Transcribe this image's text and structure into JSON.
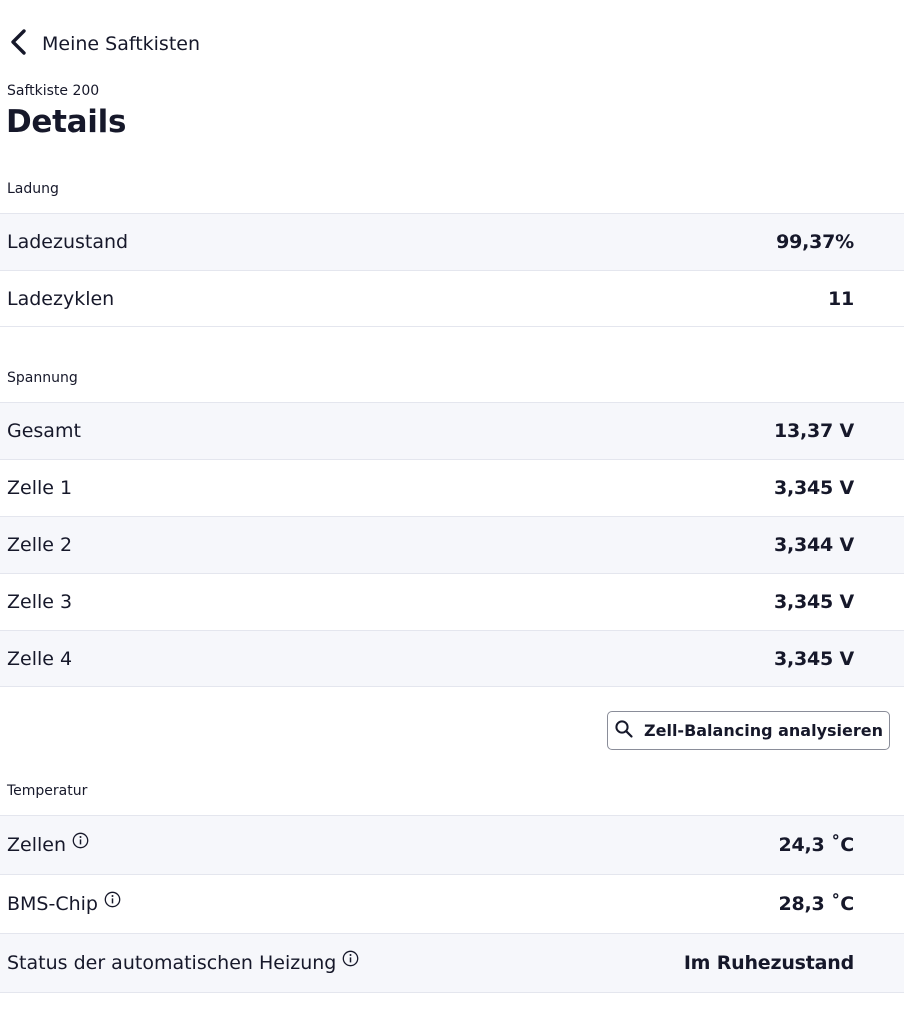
{
  "nav": {
    "back_label": "Meine Saftkisten"
  },
  "header": {
    "subtitle": "Saftkiste 200",
    "title": "Details"
  },
  "charge": {
    "section_label": "Ladung",
    "rows": [
      {
        "label": "Ladezustand",
        "value": "99,37%"
      },
      {
        "label": "Ladezyklen",
        "value": "11"
      }
    ]
  },
  "voltage": {
    "section_label": "Spannung",
    "rows": [
      {
        "label": "Gesamt",
        "value": "13,37 V"
      },
      {
        "label": "Zelle 1",
        "value": "3,345 V"
      },
      {
        "label": "Zelle 2",
        "value": "3,344 V"
      },
      {
        "label": "Zelle 3",
        "value": "3,345 V"
      },
      {
        "label": "Zelle 4",
        "value": "3,345 V"
      }
    ],
    "analyze_button_label": "Zell-Balancing analysieren"
  },
  "temperature": {
    "section_label": "Temperatur",
    "rows": [
      {
        "label": "Zellen",
        "value": "24,3 ˚C",
        "info_icon": "info-icon"
      },
      {
        "label": "BMS-Chip",
        "value": "28,3 ˚C",
        "info_icon": "info-icon"
      },
      {
        "label": "Status der automatischen Heizung",
        "value": "Im Ruhezustand",
        "info_icon": "info-icon"
      }
    ]
  },
  "icons": {
    "back": "chevron-left-icon",
    "search": "search-icon",
    "info": "info-icon"
  },
  "colors": {
    "text": "#16182a",
    "row_alt_background": "#f6f7fb",
    "divider": "#e4e6ee",
    "button_border": "#8a8d99"
  }
}
